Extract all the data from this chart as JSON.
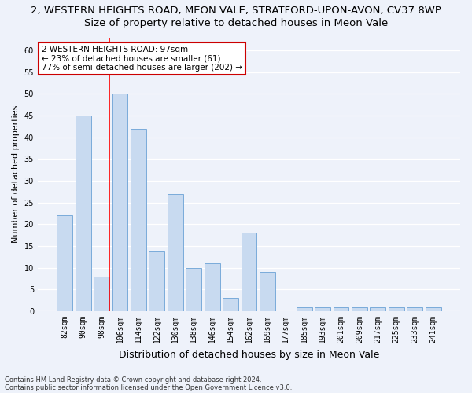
{
  "title_line1": "2, WESTERN HEIGHTS ROAD, MEON VALE, STRATFORD-UPON-AVON, CV37 8WP",
  "title_line2": "Size of property relative to detached houses in Meon Vale",
  "xlabel": "Distribution of detached houses by size in Meon Vale",
  "ylabel": "Number of detached properties",
  "categories": [
    "82sqm",
    "90sqm",
    "98sqm",
    "106sqm",
    "114sqm",
    "122sqm",
    "130sqm",
    "138sqm",
    "146sqm",
    "154sqm",
    "162sqm",
    "169sqm",
    "177sqm",
    "185sqm",
    "193sqm",
    "201sqm",
    "209sqm",
    "217sqm",
    "225sqm",
    "233sqm",
    "241sqm"
  ],
  "values": [
    22,
    45,
    8,
    50,
    42,
    14,
    27,
    10,
    11,
    3,
    18,
    9,
    0,
    1,
    1,
    1,
    1,
    1,
    1,
    1,
    1
  ],
  "bar_color": "#c8daf0",
  "bar_edge_color": "#7aabda",
  "red_line_index": 2,
  "annotation_text": "2 WESTERN HEIGHTS ROAD: 97sqm\n← 23% of detached houses are smaller (61)\n77% of semi-detached houses are larger (202) →",
  "annotation_box_color": "#ffffff",
  "annotation_box_edge": "#cc0000",
  "ylim": [
    0,
    63
  ],
  "yticks": [
    0,
    5,
    10,
    15,
    20,
    25,
    30,
    35,
    40,
    45,
    50,
    55,
    60
  ],
  "footnote1": "Contains HM Land Registry data © Crown copyright and database right 2024.",
  "footnote2": "Contains public sector information licensed under the Open Government Licence v3.0.",
  "background_color": "#eef2fa",
  "plot_bg_color": "#eef2fa",
  "grid_color": "#ffffff",
  "title1_fontsize": 9.5,
  "title2_fontsize": 9.5,
  "xlabel_fontsize": 9,
  "ylabel_fontsize": 8,
  "tick_fontsize": 7,
  "annot_fontsize": 7.5,
  "footnote_fontsize": 6
}
